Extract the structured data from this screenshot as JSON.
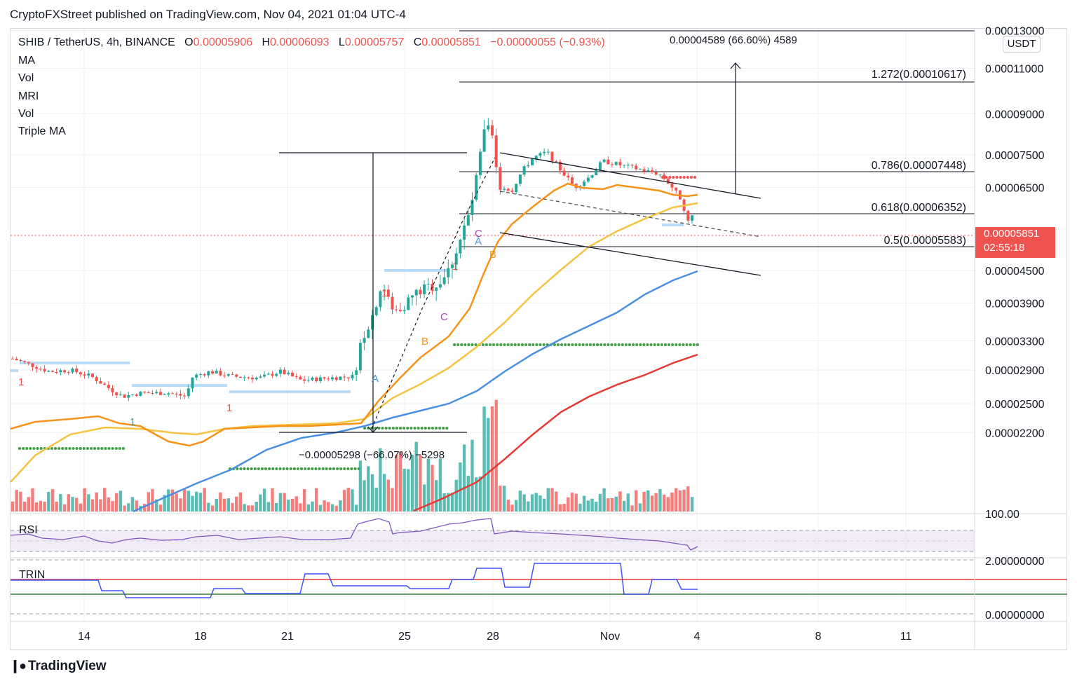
{
  "header": {
    "publisher_line": "CryptoFXStreet published on TradingView.com, Nov 04, 2021 01:04 UTC-4"
  },
  "legend": {
    "symbol": "SHIB / TetherUS, 4h, BINANCE",
    "o_label": "O",
    "o_value": "0.00005906",
    "h_label": "H",
    "h_value": "0.00006093",
    "l_label": "L",
    "l_value": "0.00005757",
    "c_label": "C",
    "c_value": "0.00005851",
    "change": "−0.00000055 (−0.93%)",
    "indicators": [
      "MA",
      "Vol",
      "MRI",
      "Vol",
      "Triple MA"
    ]
  },
  "price_scale": {
    "currency": "USDT",
    "labels": [
      "0.00013000",
      "0.00011000",
      "0.00009000",
      "0.00007500",
      "0.00006500",
      "0.00004500",
      "0.00003900",
      "0.00003300",
      "0.00002900",
      "0.00002500",
      "0.00002200"
    ],
    "last_price": "0.00005851",
    "countdown": "02:55:18",
    "last_price_color": "#ef5350"
  },
  "time_axis": {
    "labels": [
      "14",
      "18",
      "21",
      "25",
      "28",
      "Nov",
      "4",
      "8",
      "11"
    ]
  },
  "annotations": {
    "measure_up": "0.00004589 (66.60%) 4589",
    "measure_down": "−0.00005298 (−66.07%) −5298",
    "fib_1272": "1.272(0.00010617)",
    "fib_0786": "0.786(0.00007448)",
    "fib_0618": "0.618(0.00006352)",
    "fib_05": "0.5(0.00005583)",
    "wave_A1": "A",
    "wave_B1": "B",
    "wave_C1": "C",
    "wave_A2": "A",
    "wave_B2": "B",
    "wave_C2": "C",
    "count_1a": "1",
    "count_1b": "1",
    "count_1c": "1",
    "count_1d": "1",
    "count_1e": "1"
  },
  "rsi_panel": {
    "label": "RSI",
    "scale_top": "100.00"
  },
  "trin_panel": {
    "label": "TRIN",
    "scale_top": "2.00000000",
    "scale_bottom": "0.00000000"
  },
  "footer": {
    "brand": "TradingView"
  },
  "colors": {
    "up": "#26a69a",
    "down": "#ef5350",
    "ma_orange": "#f7931a",
    "ma_yellow": "#f5c242",
    "ma_blue": "#4a90e2",
    "ma_red": "#e53935",
    "rsi": "#7e57c2",
    "trin": "#3f51f5"
  },
  "chart_data": {
    "type": "candlestick",
    "title": "SHIB / TetherUS, 4h, BINANCE",
    "ylabel": "USDT",
    "y_scale": "log",
    "ylim": [
      2.02e-05,
      0.0001345
    ],
    "x_ticks": [
      "14",
      "18",
      "21",
      "25",
      "28",
      "Nov",
      "4",
      "8",
      "11"
    ],
    "key_levels": [
      {
        "label": "1.272",
        "value": 0.00010617
      },
      {
        "label": "0.786",
        "value": 7.448e-05
      },
      {
        "label": "0.618",
        "value": 6.352e-05
      },
      {
        "label": "0.5",
        "value": 5.583e-05
      }
    ],
    "last": {
      "open": 5.906e-05,
      "high": 6.093e-05,
      "low": 5.757e-05,
      "close": 5.851e-05
    }
  }
}
